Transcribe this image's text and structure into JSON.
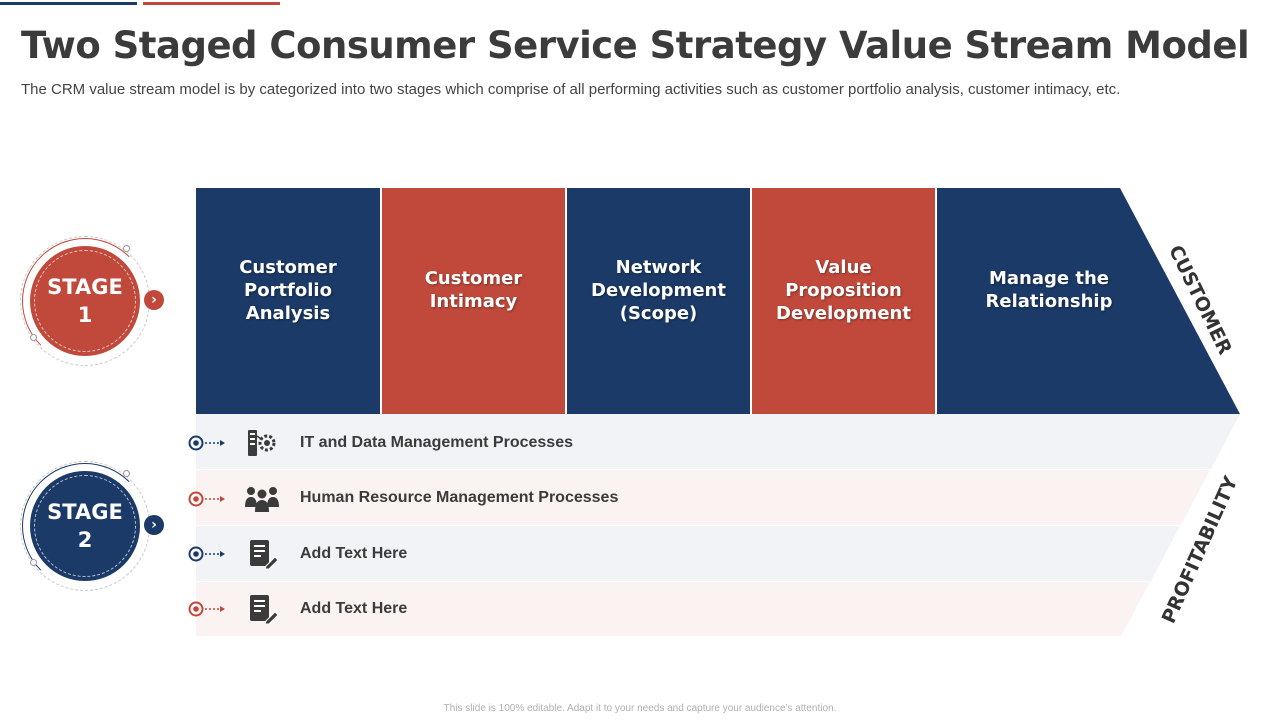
{
  "title": "Two Staged Consumer Service Strategy Value Stream Model",
  "subtitle": "The CRM value stream model is by categorized into two stages which comprise of all  performing activities such as customer portfolio analysis, customer intimacy, etc.",
  "colors": {
    "navy": "#1b3a68",
    "red": "#c0493b",
    "row_light_blue": "#f1f3f7",
    "row_light_red": "#fbf3f1"
  },
  "stages": [
    {
      "label_line1": "STAGE",
      "label_line2": "1",
      "color": "#c0493b"
    },
    {
      "label_line1": "STAGE",
      "label_line2": "2",
      "color": "#1b3a68"
    }
  ],
  "stream": {
    "cells": [
      {
        "label": "Customer Portfolio Analysis",
        "color": "#1b3a68"
      },
      {
        "label": "Customer Intimacy",
        "color": "#c0493b"
      },
      {
        "label": "Network Development (Scope)",
        "color": "#1b3a68"
      },
      {
        "label": "Value Proposition Development",
        "color": "#c0493b"
      },
      {
        "label": "Manage the Relationship",
        "color": "#1b3a68"
      }
    ],
    "side_label": "CUSTOMER"
  },
  "processes": {
    "rows": [
      {
        "label": "IT and Data Management Processes",
        "icon": "it-gear-icon",
        "bullet_color": "#1b3a68"
      },
      {
        "label": "Human Resource Management Processes",
        "icon": "people-group-icon",
        "bullet_color": "#c0493b"
      },
      {
        "label": "Add Text Here",
        "icon": "document-edit-icon",
        "bullet_color": "#1b3a68"
      },
      {
        "label": "Add Text Here",
        "icon": "document-edit-icon",
        "bullet_color": "#c0493b"
      }
    ],
    "side_label": "PROFITABILITY"
  },
  "footer": "This slide is 100% editable. Adapt it to your needs and capture your audience's attention."
}
